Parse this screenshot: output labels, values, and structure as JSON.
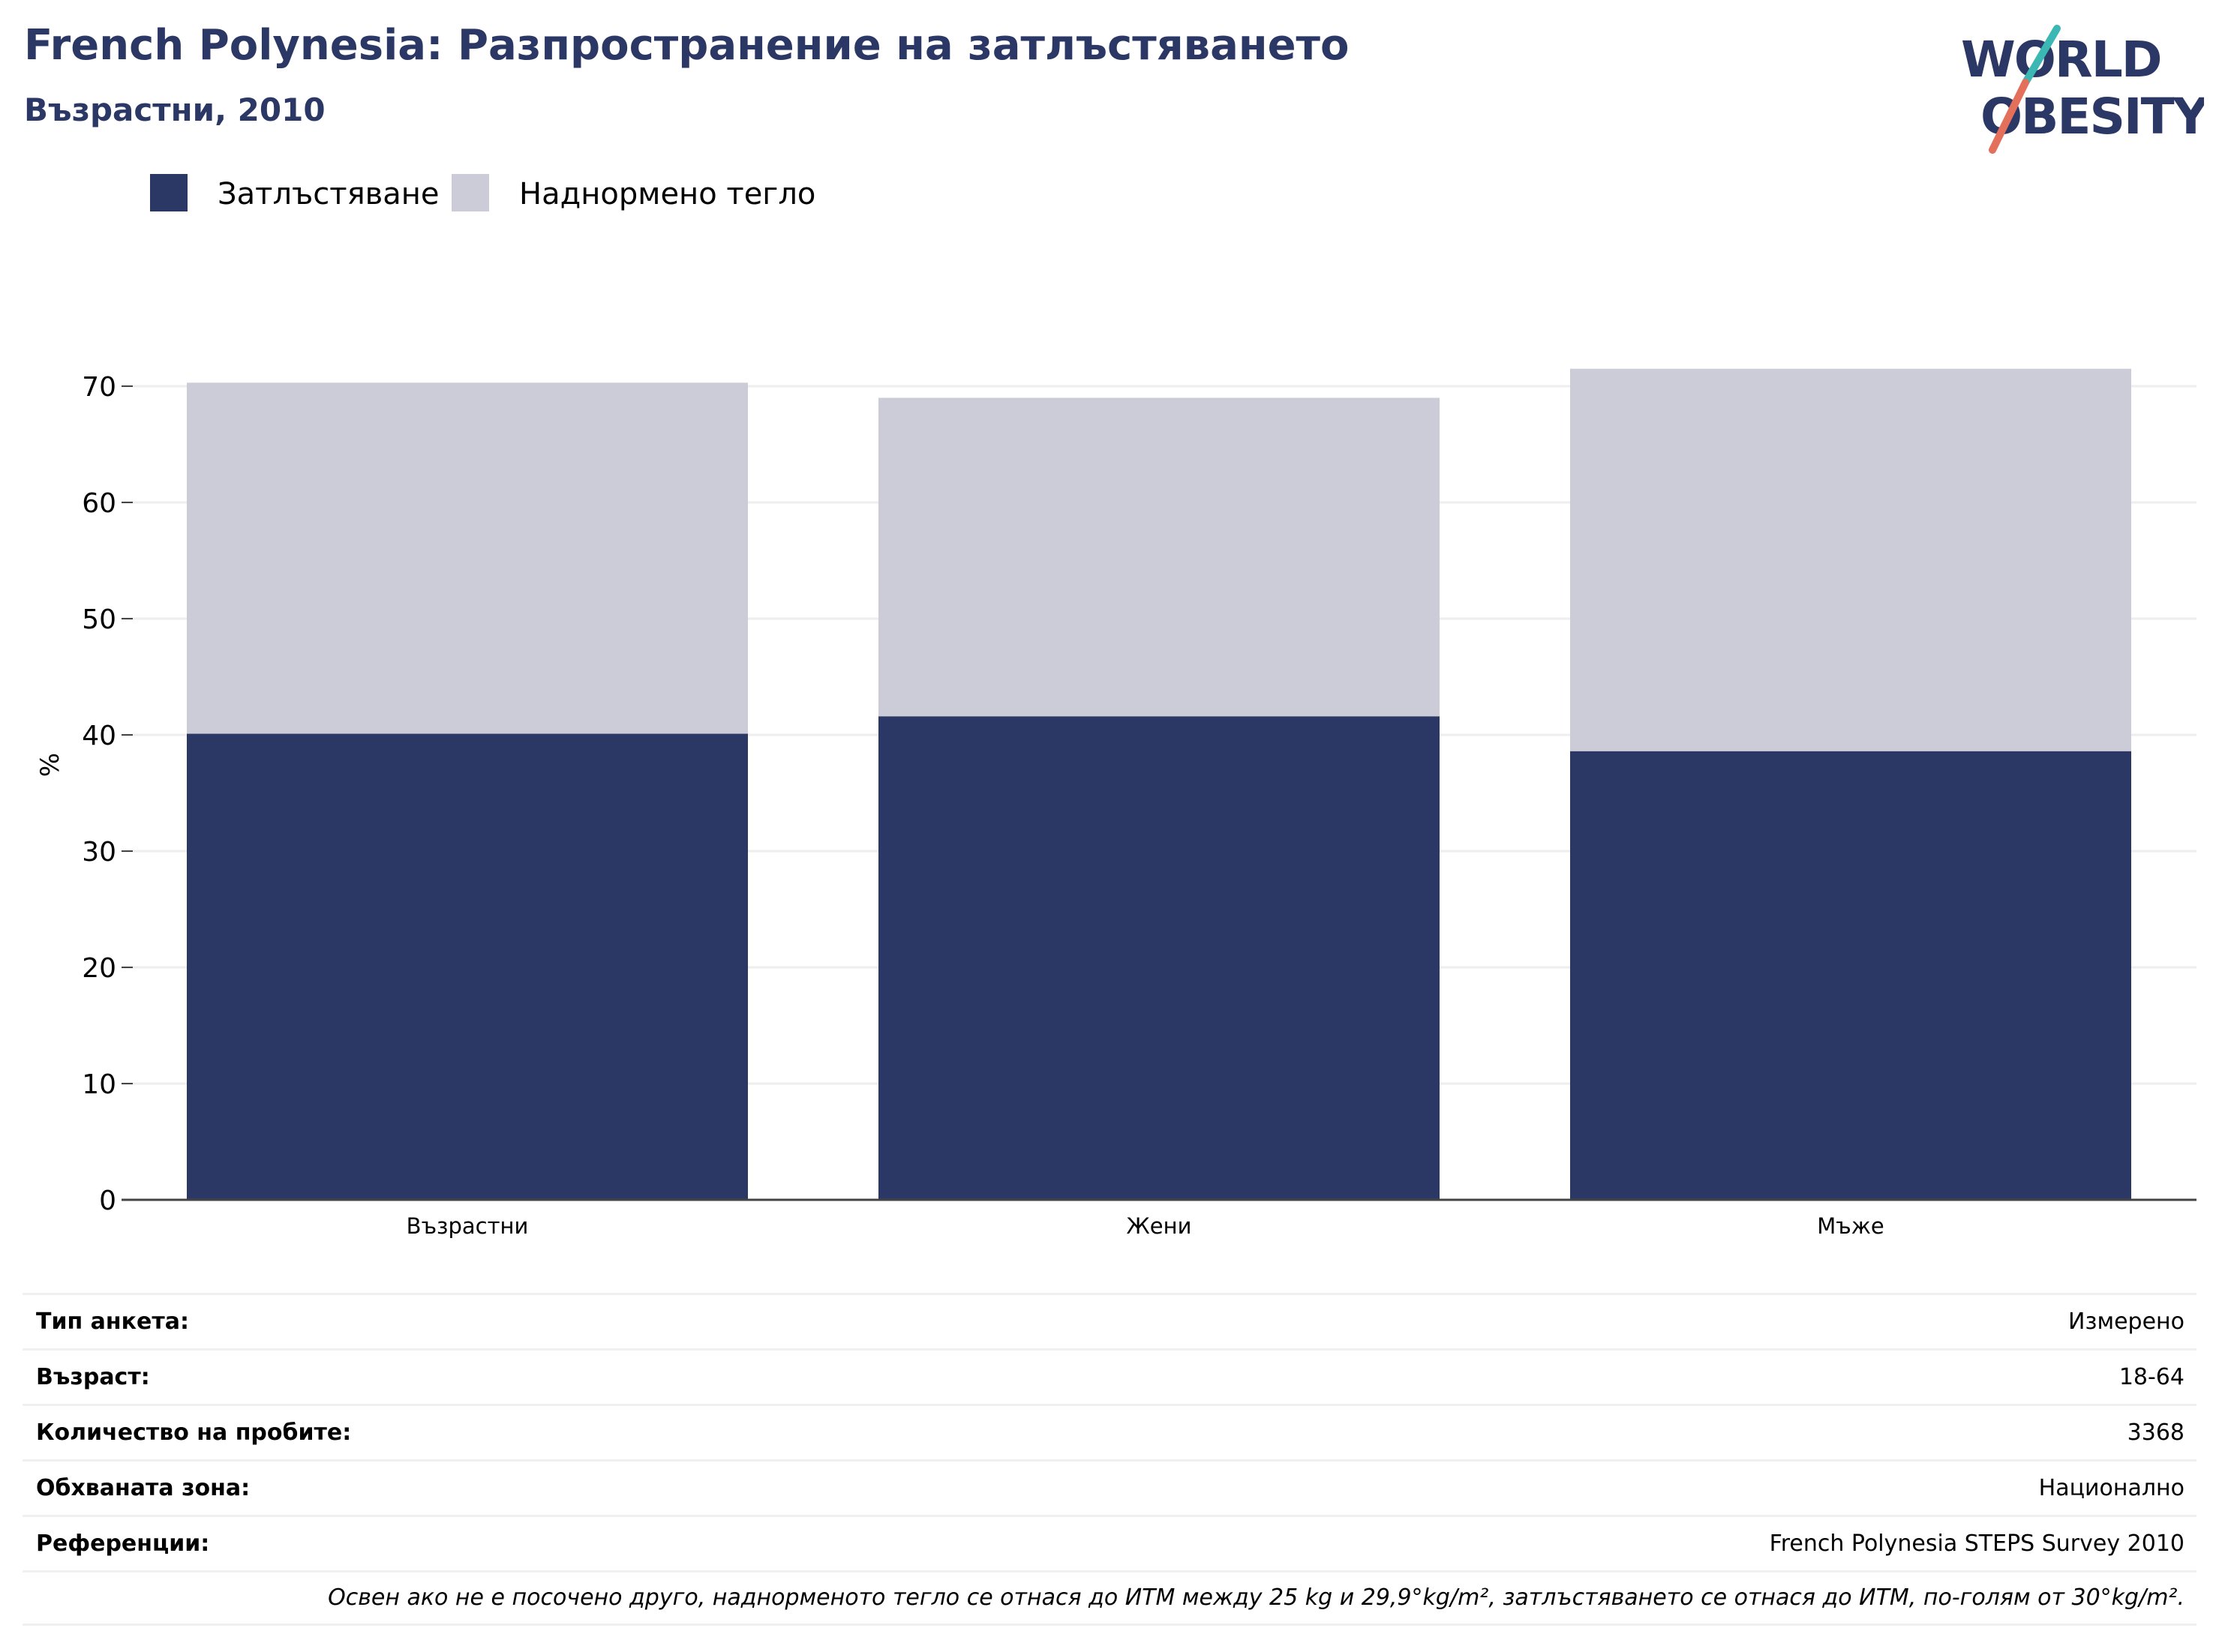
{
  "header": {
    "title": "French Polynesia: Разпространение на затлъстяването",
    "subtitle": "Възрастни, 2010"
  },
  "logo": {
    "line1": "WORLD",
    "line2": "OBESITY"
  },
  "colors": {
    "obesity": "#2b3764",
    "overweight": "#cbccd8",
    "grid": "#eeeeee",
    "axis": "#444444",
    "title": "#2b3764",
    "logo_teal": "#3bb7b4",
    "logo_coral": "#e4705c"
  },
  "chart_data": {
    "type": "bar",
    "stacked": true,
    "categories": [
      "Възрастни",
      "Жени",
      "Мъже"
    ],
    "series": [
      {
        "name": "Затлъстяване",
        "values": [
          40.1,
          41.6,
          38.6
        ]
      },
      {
        "name": "Наднормено тегло",
        "values": [
          30.2,
          27.4,
          32.9
        ]
      }
    ],
    "ylabel": "%",
    "ylim": [
      0,
      75
    ],
    "yticks": [
      0,
      10,
      20,
      30,
      40,
      50,
      60,
      70
    ],
    "grid": true,
    "legend_position": "top-left"
  },
  "meta": {
    "rows": [
      {
        "label": "Тип анкета:",
        "value": "Измерено"
      },
      {
        "label": "Възраст:",
        "value": "18-64"
      },
      {
        "label": "Количество на пробите:",
        "value": "3368"
      },
      {
        "label": "Обхваната зона:",
        "value": "Национално"
      },
      {
        "label": "Референции:",
        "value": "French Polynesia STEPS Survey 2010"
      }
    ],
    "note": "Освен ако не е посочено друго, наднорменото тегло се отнася до ИТМ между 25 kg и 29,9°kg/m², затлъстяването се отнася до ИТМ, по-голям от 30°kg/m²."
  }
}
